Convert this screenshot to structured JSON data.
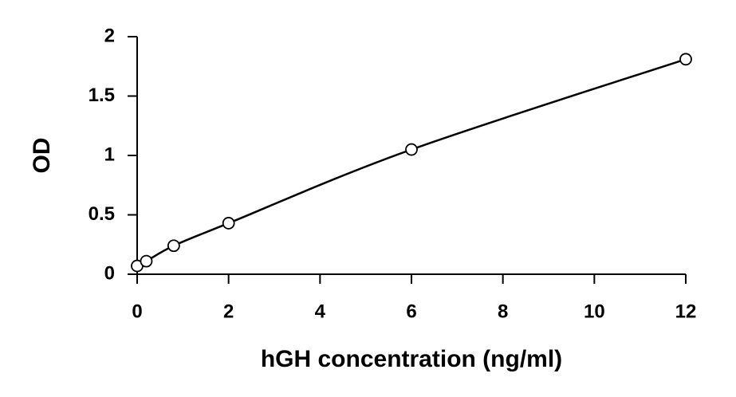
{
  "chart_data": {
    "type": "scatter",
    "x_label": "hGH concentration (ng/ml)",
    "y_label": "OD",
    "x": [
      0,
      0.2,
      0.8,
      2,
      6,
      12
    ],
    "values": [
      0.07,
      0.11,
      0.24,
      0.43,
      1.05,
      1.81
    ],
    "color": "#000000",
    "smooth_line": true,
    "xlim": [
      0,
      12
    ],
    "xticks": [
      0,
      2,
      4,
      6,
      8,
      10,
      12
    ],
    "ylim": [
      0,
      2
    ],
    "yticks": [
      0,
      0.5,
      1,
      1.5,
      2
    ]
  }
}
